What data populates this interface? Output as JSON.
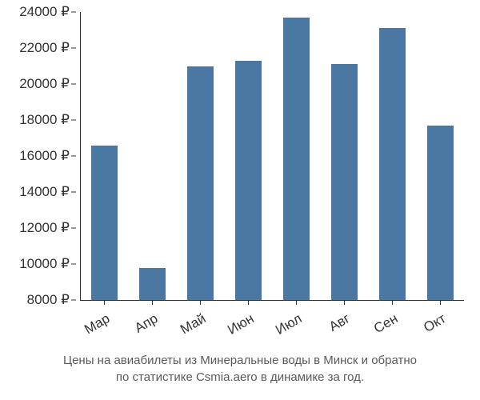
{
  "chart": {
    "type": "bar",
    "categories": [
      "Мар",
      "Апр",
      "Май",
      "Июн",
      "Июл",
      "Авг",
      "Сен",
      "Окт"
    ],
    "values": [
      16600,
      9800,
      21000,
      21300,
      23700,
      21100,
      23100,
      17700
    ],
    "bar_color": "#4a78a3",
    "background_color": "#ffffff",
    "axis_color": "#333333",
    "text_color": "#333333",
    "caption_color": "#5a5a5a",
    "ylim": [
      8000,
      24000
    ],
    "ytick_step": 2000,
    "ytick_suffix": " ₽",
    "bar_width": 0.55,
    "tick_fontsize": 17,
    "caption_fontsize": 15,
    "x_label_rotation": -30
  },
  "caption_line1": "Цены на авиабилеты из Минеральные воды в Минск и обратно",
  "caption_line2": "по статистике Csmia.aero в динамике за год."
}
